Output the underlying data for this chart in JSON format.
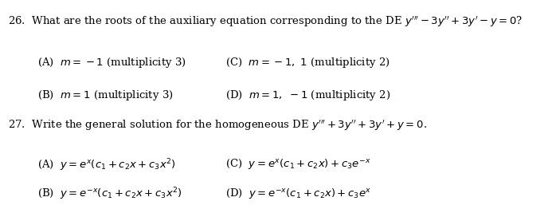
{
  "background_color": "#ffffff",
  "figsize": [
    6.88,
    2.57
  ],
  "dpi": 100,
  "q26": {
    "number": "26.",
    "text": "What are the roots of the auxiliary equation corresponding to the DE $y^{\\prime\\prime\\prime} - 3y^{\\prime\\prime} + 3y^{\\prime} - y = 0$?",
    "A": "(A)  $m = -1$ (multiplicity 3)",
    "B": "(B)  $m = 1$ (multiplicity 3)",
    "C": "(C)  $m = -1,\\ 1$ (multiplicity 2)",
    "D": "(D)  $m = 1,\\ -1$ (multiplicity 2)"
  },
  "q27": {
    "number": "27.",
    "text": "Write the general solution for the homogeneous DE $y^{\\prime\\prime\\prime} + 3y^{\\prime\\prime} + 3y^{\\prime} + y = 0$.",
    "A": "(A)  $y = e^{x}(c_1 + c_2 x + c_3 x^2)$",
    "B": "(B)  $y = e^{-x}(c_1 + c_2 x + c_3 x^2)$",
    "C": "(C)  $y = e^{x}(c_1 + c_2 x) + c_3 e^{-x}$",
    "D": "(D)  $y = e^{-x}(c_1 + c_2 x) + c_3 e^{x}$"
  },
  "font_size_question": 9.5,
  "font_size_choice": 9.5,
  "text_color": "#000000"
}
